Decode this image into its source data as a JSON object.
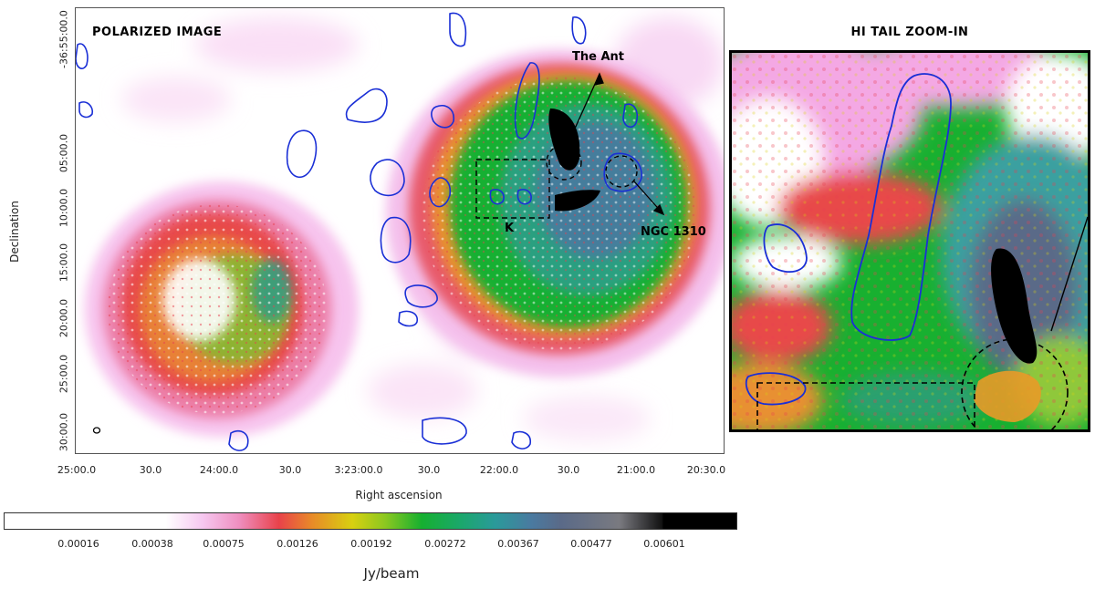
{
  "main_panel": {
    "title": "POLARIZED IMAGE",
    "annotations": {
      "ant": "The Ant",
      "ngc": "NGC 1310",
      "k": "K"
    }
  },
  "zoom_panel": {
    "title": "HI TAIL ZOOM-IN"
  },
  "axes": {
    "ylabel": "Declination",
    "xlabel": "Right ascension",
    "yticks": [
      "-36:55:00.0",
      "05:00.0",
      "10:00.0",
      "15:00.0",
      "20:00.0",
      "25:00.0",
      "30:00.0"
    ],
    "xticks": [
      "25:00.0",
      "30.0",
      "24:00.0",
      "30.0",
      "3:23:00.0",
      "30.0",
      "22:00.0",
      "30.0",
      "21:00.0",
      "20:30.0"
    ]
  },
  "colorbar": {
    "unit": "Jy/beam",
    "ticks": [
      "0.00016",
      "0.00038",
      "0.00075",
      "0.00126",
      "0.00192",
      "0.00272",
      "0.00367",
      "0.00477",
      "0.00601"
    ],
    "colors": {
      "contour": "#1a2fd6",
      "polarized_low": "#f4b0ea",
      "polarized_mid": "#e84050",
      "polarized_high": "#16b030",
      "polarized_max": "#000000"
    }
  }
}
